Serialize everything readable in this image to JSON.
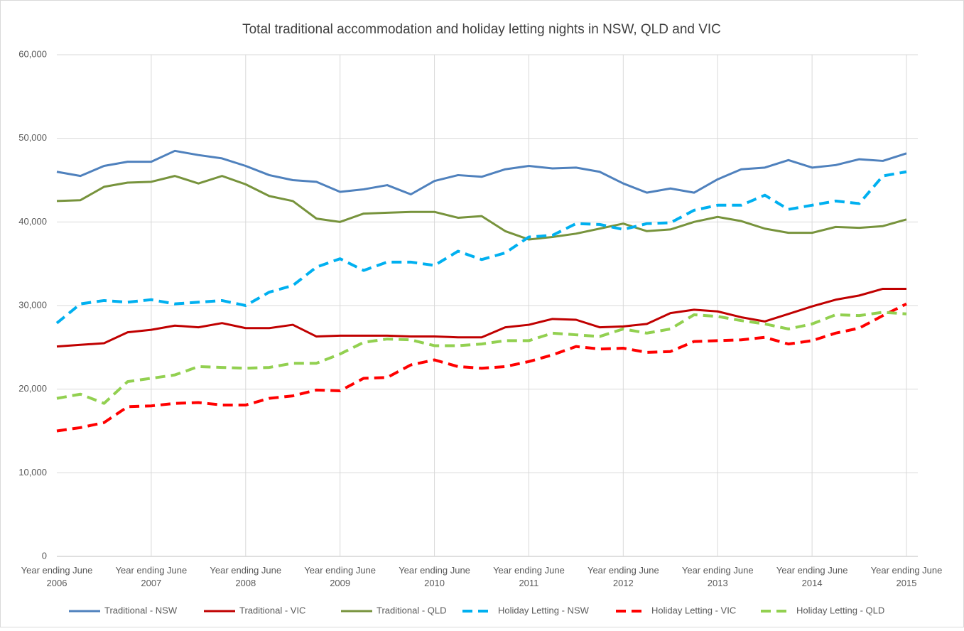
{
  "chart_data": {
    "type": "line",
    "title": "Total traditional accommodation and holiday letting nights in NSW, QLD and VIC",
    "categories": [
      [
        "Year ending June",
        "2006"
      ],
      null,
      null,
      null,
      [
        "Year ending June",
        "2007"
      ],
      null,
      null,
      null,
      [
        "Year ending June",
        "2008"
      ],
      null,
      null,
      null,
      [
        "Year ending June",
        "2009"
      ],
      null,
      null,
      null,
      [
        "Year ending June",
        "2010"
      ],
      null,
      null,
      null,
      [
        "Year ending June",
        "2011"
      ],
      null,
      null,
      null,
      [
        "Year ending June",
        "2012"
      ],
      null,
      null,
      null,
      [
        "Year ending June",
        "2013"
      ],
      null,
      null,
      null,
      [
        "Year ending June",
        "2014"
      ],
      null,
      null,
      null,
      [
        "Year ending June",
        "2015"
      ]
    ],
    "series": [
      {
        "name": "Traditional - NSW",
        "color": "#4f81bd",
        "dash": false,
        "values": [
          46000,
          45500,
          46700,
          47200,
          47200,
          48500,
          48000,
          47600,
          46700,
          45600,
          45000,
          44800,
          43600,
          43900,
          44400,
          43300,
          44900,
          45600,
          45400,
          46300,
          46700,
          46400,
          46500,
          46000,
          44600,
          43500,
          44000,
          43500,
          45100,
          46300,
          46500,
          47400,
          46500,
          46800,
          47500,
          47300,
          48200
        ]
      },
      {
        "name": "Traditional - VIC",
        "color": "#c00000",
        "dash": false,
        "values": [
          25100,
          25300,
          25500,
          26800,
          27100,
          27600,
          27400,
          27900,
          27300,
          27300,
          27700,
          26300,
          26400,
          26400,
          26400,
          26300,
          26300,
          26200,
          26200,
          27400,
          27700,
          28400,
          28300,
          27400,
          27500,
          27800,
          29100,
          29500,
          29300,
          28600,
          28100,
          29000,
          29900,
          30700,
          31200,
          32000,
          32000
        ]
      },
      {
        "name": "Traditional - QLD",
        "color": "#77933c",
        "dash": false,
        "values": [
          42500,
          42600,
          44200,
          44700,
          44800,
          45500,
          44600,
          45500,
          44500,
          43100,
          42500,
          40400,
          40000,
          41000,
          41100,
          41200,
          41200,
          40500,
          40700,
          38900,
          37900,
          38200,
          38600,
          39200,
          39800,
          38900,
          39100,
          40000,
          40600,
          40100,
          39200,
          38700,
          38700,
          39400,
          39300,
          39500,
          40300
        ]
      },
      {
        "name": "Holiday Letting - NSW",
        "color": "#00b0f0",
        "dash": true,
        "values": [
          27900,
          30200,
          30600,
          30400,
          30700,
          30200,
          30400,
          30600,
          30000,
          31600,
          32400,
          34600,
          35600,
          34200,
          35200,
          35200,
          34800,
          36500,
          35500,
          36300,
          38200,
          38400,
          39800,
          39700,
          39100,
          39800,
          39900,
          41400,
          42000,
          42000,
          43200,
          41500,
          42000,
          42500,
          42200,
          45500,
          46000
        ]
      },
      {
        "name": "Holiday Letting - VIC",
        "color": "#ff0000",
        "dash": true,
        "values": [
          15000,
          15400,
          16000,
          17900,
          18000,
          18300,
          18400,
          18100,
          18100,
          18900,
          19200,
          19900,
          19800,
          21300,
          21400,
          22900,
          23500,
          22700,
          22500,
          22700,
          23300,
          24100,
          25100,
          24800,
          24900,
          24400,
          24500,
          25700,
          25800,
          25900,
          26200,
          25400,
          25800,
          26700,
          27300,
          28800,
          30200
        ]
      },
      {
        "name": "Holiday Letting - QLD",
        "color": "#92d050",
        "dash": true,
        "values": [
          18900,
          19400,
          18300,
          20900,
          21300,
          21700,
          22700,
          22600,
          22500,
          22600,
          23100,
          23100,
          24200,
          25600,
          26000,
          25900,
          25200,
          25200,
          25400,
          25800,
          25800,
          26700,
          26500,
          26300,
          27200,
          26700,
          27200,
          28900,
          28700,
          28200,
          27800,
          27200,
          27800,
          28900,
          28800,
          29200,
          29000
        ]
      }
    ],
    "ylim": [
      0,
      60000
    ],
    "yticks": [
      0,
      {
        "value": 10000,
        "label": "10,000"
      },
      {
        "value": 20000,
        "label": "20,000"
      },
      {
        "value": 30000,
        "label": "30,000"
      },
      {
        "value": 40000,
        "label": "40,000"
      },
      {
        "value": 50000,
        "label": "50,000"
      },
      {
        "value": 60000,
        "label": "60,000"
      }
    ],
    "grid": true,
    "legend": "bottom"
  }
}
